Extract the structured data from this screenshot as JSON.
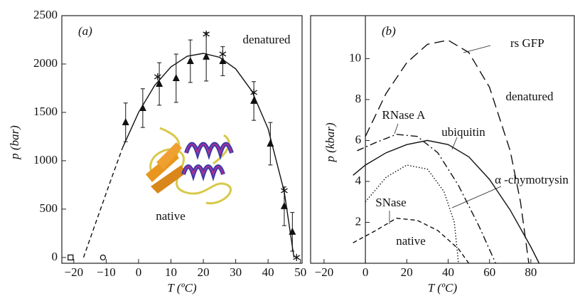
{
  "chart_data": [
    {
      "type": "scatter",
      "xlabel": "T (ºC)",
      "ylabel": "p (bar)",
      "xlim": [
        -23.7,
        50.5
      ],
      "ylim": [
        -60,
        2500
      ],
      "xticks": [
        {
          "value": -20,
          "label": "−20"
        },
        {
          "value": -10,
          "label": "−10"
        },
        0,
        10,
        20,
        30,
        40,
        50
      ],
      "yticks": [
        0,
        500,
        1000,
        1500,
        2000,
        2500
      ],
      "annotations": [
        "(a)",
        "denatured",
        "native"
      ],
      "series": [
        {
          "marker": "triangle",
          "color": "#111111",
          "x": [
            -4,
            1.3,
            6.4,
            11.6,
            16,
            20.9,
            26,
            35.6,
            40.7,
            45,
            47.5
          ],
          "values": [
            1397,
            1544,
            1794,
            1853,
            2029,
            2074,
            2029,
            1618,
            1176,
            529,
            265
          ],
          "errors": [
            200,
            200,
            220,
            250,
            220,
            250,
            150,
            200,
            220,
            200,
            200
          ]
        },
        {
          "marker": "asterisk",
          "color": "#111111",
          "x": [
            5.9,
            20.9,
            26,
            35.6,
            45,
            48.8
          ],
          "values": [
            1868,
            2309,
            2103,
            1706,
            691,
            0
          ]
        },
        {
          "marker": "circle",
          "color": "#111111",
          "x": [
            -11
          ],
          "values": [
            0
          ]
        },
        {
          "marker": "square",
          "color": "#111111",
          "x": [
            -21
          ],
          "values": [
            0
          ]
        },
        {
          "marker": "line",
          "style": "dashed",
          "color": "#111111",
          "x": [
            -17,
            -13,
            -9,
            -5
          ],
          "values": [
            0,
            380,
            760,
            1130
          ]
        },
        {
          "marker": "line",
          "style": "solid",
          "color": "#111111",
          "x": [
            -5,
            0,
            5,
            10,
            15,
            20,
            25,
            30,
            35,
            40,
            45,
            48
          ],
          "values": [
            1130,
            1500,
            1780,
            1970,
            2080,
            2110,
            2070,
            1950,
            1720,
            1330,
            680,
            0
          ]
        }
      ]
    },
    {
      "type": "line",
      "xlabel": "T (ºC)",
      "ylabel": "p (kbar)",
      "xlim": [
        -26.5,
        101
      ],
      "ylim": [
        0,
        12.1
      ],
      "y_axis_at_zero": true,
      "xticks": [
        {
          "value": -20,
          "label": "−20"
        },
        0,
        20,
        40,
        60,
        80
      ],
      "yticks": [
        2,
        4,
        6,
        8,
        10
      ],
      "annotations": [
        "(b)",
        "rs GFP",
        "denatured",
        "RNase A",
        "ubiquitin",
        "α -chymotrysin",
        "SNase",
        "native"
      ],
      "series": [
        {
          "style": "longdash",
          "color": "#111111",
          "x": [
            0,
            10,
            20,
            30,
            40,
            50,
            60,
            70,
            75,
            79
          ],
          "values": [
            6.2,
            8.3,
            9.8,
            10.7,
            10.9,
            10.3,
            8.6,
            5.5,
            3,
            0
          ]
        },
        {
          "style": "dashdot",
          "color": "#111111",
          "x": [
            -4,
            5,
            15,
            25,
            35,
            45,
            55,
            63
          ],
          "values": [
            5.5,
            5.9,
            6.3,
            6.2,
            5.4,
            3.8,
            1.8,
            0
          ]
        },
        {
          "style": "solid",
          "color": "#111111",
          "x": [
            -6,
            0,
            10,
            20,
            30,
            40,
            50,
            60,
            70,
            80,
            84
          ],
          "values": [
            4.3,
            4.8,
            5.4,
            5.8,
            6.0,
            5.8,
            5.2,
            4.1,
            2.6,
            0.8,
            0
          ]
        },
        {
          "style": "dotted",
          "color": "#111111",
          "x": [
            0,
            10,
            20,
            30,
            38,
            43,
            45
          ],
          "values": [
            3.0,
            4.2,
            4.8,
            4.6,
            3.5,
            2.0,
            0
          ]
        },
        {
          "style": "dashed",
          "color": "#111111",
          "x": [
            -6,
            5,
            15,
            25,
            35,
            45,
            50
          ],
          "values": [
            1.0,
            1.6,
            2.2,
            2.1,
            1.6,
            0.7,
            0
          ]
        }
      ]
    }
  ]
}
